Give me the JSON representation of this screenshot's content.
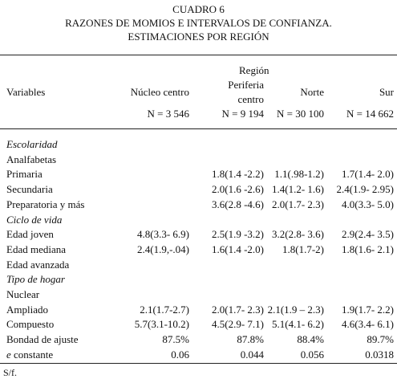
{
  "header": {
    "title": "CUADRO 6",
    "subtitle": [
      "RAZONES DE MOMIOS E INTERVALOS DE CONFIANZA.",
      "ESTIMACIONES POR REGIÓN"
    ]
  },
  "table": {
    "group_header": "Región",
    "columns": [
      [
        "Variables"
      ],
      [
        "Núcleo centro"
      ],
      [
        "Periferia",
        "centro"
      ],
      [
        "Norte"
      ],
      [
        "Sur"
      ]
    ],
    "n_row": [
      "N = 3 546",
      "N = 9 194",
      "N = 30 100",
      "N = 14 662"
    ],
    "rows": [
      {
        "section": "Escolaridad"
      },
      {
        "label": "Analfabetas",
        "values": [
          null,
          null,
          null,
          null
        ]
      },
      {
        "label": "Primaria",
        "values": [
          null,
          "1.8(1.4 -2.2)",
          "1.1(.98-1.2)",
          "1.7(1.4- 2.0)"
        ]
      },
      {
        "label": "Secundaria",
        "values": [
          null,
          "2.0(1.6 -2.6)",
          "1.4(1.2- 1.6)",
          "2.4(1.9- 2.95)"
        ]
      },
      {
        "label": "Preparatoria y más",
        "values": [
          null,
          "3.6(2.8 -4.6)",
          "2.0(1.7- 2.3)",
          "4.0(3.3- 5.0)"
        ]
      },
      {
        "section": "Ciclo de vida"
      },
      {
        "label": "Edad joven",
        "values": [
          "4.8(3.3- 6.9)",
          "2.5(1.9 -3.2)",
          "3.2(2.8- 3.6)",
          "2.9(2.4- 3.5)"
        ]
      },
      {
        "label": "Edad mediana",
        "values": [
          "2.4(1.9,-.04)",
          "1.6(1.4 -2.0)",
          "1.8(1.7-2)",
          "1.8(1.6- 2.1)"
        ]
      },
      {
        "label": "Edad avanzada",
        "values": [
          null,
          null,
          null,
          null
        ]
      },
      {
        "section": "Tipo de hogar"
      },
      {
        "label": "Nuclear",
        "values": [
          null,
          null,
          null,
          null
        ]
      },
      {
        "label": "Ampliado",
        "values": [
          "2.1(1.7-2.7)",
          "2.0(1.7- 2.3)",
          "2.1(1.9 – 2.3)",
          "1.9(1.7- 2.2)"
        ]
      },
      {
        "label": "Compuesto",
        "values": [
          "5.7(3.1-10.2)",
          "4.5(2.9- 7.1)",
          "5.1(4.1- 6.2)",
          "4.6(3.4- 6.1)"
        ]
      },
      {
        "label": "Bondad de ajuste",
        "values": [
          "87.5%",
          "87.8%",
          "88.4%",
          "89.7%"
        ]
      },
      {
        "label": "e constante",
        "values": [
          "0.06",
          "0.044",
          "0.056",
          "0.0318"
        ]
      }
    ]
  },
  "footer": "S/f."
}
